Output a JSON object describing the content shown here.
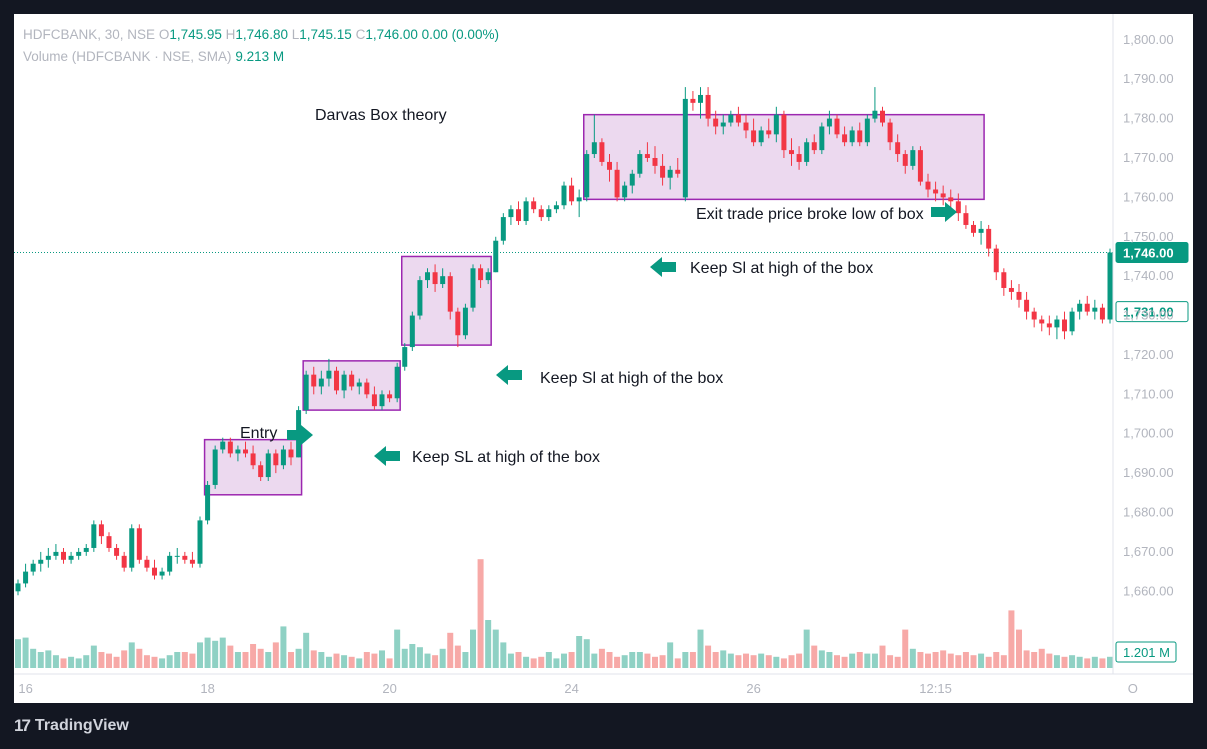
{
  "legend": {
    "symbol": "HDFCBANK, 30, NSE",
    "open_k": "O",
    "open": "1,745.95",
    "high_k": "H",
    "high": "1,746.80",
    "low_k": "L",
    "low": "1,745.15",
    "close_k": "C",
    "close": "1,746.00",
    "change": "0.00 (0.00%)",
    "volume_label": "Volume (HDFCBANK · NSE, SMA)",
    "volume_value": "9.213 M"
  },
  "footer": {
    "logo": "17",
    "brand": "TradingView"
  },
  "chart_data": {
    "type": "candlestick",
    "title": "",
    "y_ticks": [
      "1,800.00",
      "1,790.00",
      "1,780.00",
      "1,770.00",
      "1,760.00",
      "1,750.00",
      "1,740.00",
      "1,730.00",
      "1,720.00",
      "1,710.00",
      "1,700.00",
      "1,690.00",
      "1,680.00",
      "1,670.00",
      "1,660.00"
    ],
    "x_ticks": [
      "16",
      "18",
      "20",
      "24",
      "26",
      "12:15",
      "O"
    ],
    "ylim": [
      1655,
      1803
    ],
    "last_price_label": "1,746.00",
    "last_price": 1746.0,
    "price_marker_label": "1,731.00",
    "price_marker": 1731.0,
    "volume_marker_label": "1.201 M",
    "colors": {
      "up": "#089981",
      "down": "#f23645",
      "up_vol": "#8fd1c4",
      "down_vol": "#f7a9a7",
      "box_fill": "#e9d2ec",
      "box_stroke": "#9c27b0",
      "arrow": "#089981",
      "price_line": "#089981"
    },
    "candles": [
      {
        "o": 1660,
        "h": 1663,
        "l": 1659,
        "c": 1662
      },
      {
        "o": 1662,
        "h": 1667,
        "l": 1661,
        "c": 1665
      },
      {
        "o": 1665,
        "h": 1668,
        "l": 1664,
        "c": 1667
      },
      {
        "o": 1667,
        "h": 1670,
        "l": 1665,
        "c": 1668
      },
      {
        "o": 1668,
        "h": 1671,
        "l": 1666,
        "c": 1669
      },
      {
        "o": 1669,
        "h": 1672,
        "l": 1668,
        "c": 1670
      },
      {
        "o": 1670,
        "h": 1671,
        "l": 1667,
        "c": 1668
      },
      {
        "o": 1668,
        "h": 1670,
        "l": 1667,
        "c": 1669
      },
      {
        "o": 1669,
        "h": 1671,
        "l": 1668,
        "c": 1670
      },
      {
        "o": 1670,
        "h": 1672,
        "l": 1669,
        "c": 1671
      },
      {
        "o": 1671,
        "h": 1678,
        "l": 1670,
        "c": 1677
      },
      {
        "o": 1677,
        "h": 1678,
        "l": 1672,
        "c": 1674
      },
      {
        "o": 1674,
        "h": 1675,
        "l": 1670,
        "c": 1671
      },
      {
        "o": 1671,
        "h": 1672,
        "l": 1668,
        "c": 1669
      },
      {
        "o": 1669,
        "h": 1670,
        "l": 1665,
        "c": 1666
      },
      {
        "o": 1666,
        "h": 1677,
        "l": 1665,
        "c": 1676
      },
      {
        "o": 1676,
        "h": 1677,
        "l": 1667,
        "c": 1668
      },
      {
        "o": 1668,
        "h": 1669,
        "l": 1665,
        "c": 1666
      },
      {
        "o": 1666,
        "h": 1668,
        "l": 1663,
        "c": 1664
      },
      {
        "o": 1664,
        "h": 1666,
        "l": 1663,
        "c": 1665
      },
      {
        "o": 1665,
        "h": 1670,
        "l": 1664,
        "c": 1669
      },
      {
        "o": 1669,
        "h": 1671,
        "l": 1667,
        "c": 1669
      },
      {
        "o": 1669,
        "h": 1670,
        "l": 1667,
        "c": 1668
      },
      {
        "o": 1668,
        "h": 1670,
        "l": 1666,
        "c": 1667
      },
      {
        "o": 1667,
        "h": 1679,
        "l": 1666,
        "c": 1678
      },
      {
        "o": 1678,
        "h": 1688,
        "l": 1677,
        "c": 1687
      },
      {
        "o": 1687,
        "h": 1697,
        "l": 1686,
        "c": 1696
      },
      {
        "o": 1696,
        "h": 1699,
        "l": 1695,
        "c": 1698
      },
      {
        "o": 1698,
        "h": 1699,
        "l": 1694,
        "c": 1695
      },
      {
        "o": 1695,
        "h": 1697,
        "l": 1693,
        "c": 1696
      },
      {
        "o": 1696,
        "h": 1698,
        "l": 1694,
        "c": 1695
      },
      {
        "o": 1695,
        "h": 1697,
        "l": 1691,
        "c": 1692
      },
      {
        "o": 1692,
        "h": 1693,
        "l": 1688,
        "c": 1689
      },
      {
        "o": 1689,
        "h": 1696,
        "l": 1688,
        "c": 1695
      },
      {
        "o": 1695,
        "h": 1696,
        "l": 1690,
        "c": 1692
      },
      {
        "o": 1692,
        "h": 1697,
        "l": 1691,
        "c": 1696
      },
      {
        "o": 1696,
        "h": 1698,
        "l": 1692,
        "c": 1694
      },
      {
        "o": 1694,
        "h": 1707,
        "l": 1694,
        "c": 1706
      },
      {
        "o": 1706,
        "h": 1716,
        "l": 1705,
        "c": 1715
      },
      {
        "o": 1715,
        "h": 1717,
        "l": 1710,
        "c": 1712
      },
      {
        "o": 1712,
        "h": 1716,
        "l": 1710,
        "c": 1714
      },
      {
        "o": 1714,
        "h": 1719,
        "l": 1712,
        "c": 1716
      },
      {
        "o": 1716,
        "h": 1717,
        "l": 1710,
        "c": 1711
      },
      {
        "o": 1711,
        "h": 1716,
        "l": 1709,
        "c": 1715
      },
      {
        "o": 1715,
        "h": 1716,
        "l": 1711,
        "c": 1712
      },
      {
        "o": 1712,
        "h": 1714,
        "l": 1710,
        "c": 1713
      },
      {
        "o": 1713,
        "h": 1714,
        "l": 1709,
        "c": 1710
      },
      {
        "o": 1710,
        "h": 1712,
        "l": 1706,
        "c": 1707
      },
      {
        "o": 1707,
        "h": 1711,
        "l": 1706,
        "c": 1710
      },
      {
        "o": 1710,
        "h": 1711,
        "l": 1708,
        "c": 1709
      },
      {
        "o": 1709,
        "h": 1718,
        "l": 1708,
        "c": 1717
      },
      {
        "o": 1717,
        "h": 1723,
        "l": 1716,
        "c": 1722
      },
      {
        "o": 1722,
        "h": 1731,
        "l": 1721,
        "c": 1730
      },
      {
        "o": 1730,
        "h": 1740,
        "l": 1729,
        "c": 1739
      },
      {
        "o": 1739,
        "h": 1742,
        "l": 1737,
        "c": 1741
      },
      {
        "o": 1741,
        "h": 1743,
        "l": 1736,
        "c": 1738
      },
      {
        "o": 1738,
        "h": 1742,
        "l": 1737,
        "c": 1740
      },
      {
        "o": 1740,
        "h": 1741,
        "l": 1729,
        "c": 1731
      },
      {
        "o": 1731,
        "h": 1732,
        "l": 1722,
        "c": 1725
      },
      {
        "o": 1725,
        "h": 1733,
        "l": 1724,
        "c": 1732
      },
      {
        "o": 1732,
        "h": 1743,
        "l": 1731,
        "c": 1742
      },
      {
        "o": 1742,
        "h": 1743,
        "l": 1737,
        "c": 1739
      },
      {
        "o": 1739,
        "h": 1742,
        "l": 1738,
        "c": 1741
      },
      {
        "o": 1741,
        "h": 1750,
        "l": 1741,
        "c": 1749
      },
      {
        "o": 1749,
        "h": 1756,
        "l": 1748,
        "c": 1755
      },
      {
        "o": 1755,
        "h": 1758,
        "l": 1753,
        "c": 1757
      },
      {
        "o": 1757,
        "h": 1759,
        "l": 1753,
        "c": 1754
      },
      {
        "o": 1754,
        "h": 1760,
        "l": 1753,
        "c": 1759
      },
      {
        "o": 1759,
        "h": 1760,
        "l": 1756,
        "c": 1757
      },
      {
        "o": 1757,
        "h": 1758,
        "l": 1754,
        "c": 1755
      },
      {
        "o": 1755,
        "h": 1758,
        "l": 1754,
        "c": 1757
      },
      {
        "o": 1757,
        "h": 1759,
        "l": 1756,
        "c": 1758
      },
      {
        "o": 1758,
        "h": 1764,
        "l": 1757,
        "c": 1763
      },
      {
        "o": 1763,
        "h": 1765,
        "l": 1758,
        "c": 1759
      },
      {
        "o": 1759,
        "h": 1762,
        "l": 1755,
        "c": 1760
      },
      {
        "o": 1760,
        "h": 1772,
        "l": 1759,
        "c": 1771
      },
      {
        "o": 1771,
        "h": 1781,
        "l": 1770,
        "c": 1774
      },
      {
        "o": 1774,
        "h": 1775,
        "l": 1768,
        "c": 1769
      },
      {
        "o": 1769,
        "h": 1771,
        "l": 1764,
        "c": 1767
      },
      {
        "o": 1767,
        "h": 1769,
        "l": 1759,
        "c": 1760
      },
      {
        "o": 1760,
        "h": 1764,
        "l": 1759,
        "c": 1763
      },
      {
        "o": 1763,
        "h": 1767,
        "l": 1761,
        "c": 1766
      },
      {
        "o": 1766,
        "h": 1772,
        "l": 1765,
        "c": 1771
      },
      {
        "o": 1771,
        "h": 1774,
        "l": 1769,
        "c": 1770
      },
      {
        "o": 1770,
        "h": 1773,
        "l": 1766,
        "c": 1768
      },
      {
        "o": 1768,
        "h": 1771,
        "l": 1763,
        "c": 1765
      },
      {
        "o": 1765,
        "h": 1768,
        "l": 1762,
        "c": 1767
      },
      {
        "o": 1767,
        "h": 1770,
        "l": 1765,
        "c": 1766
      },
      {
        "o": 1760,
        "h": 1788,
        "l": 1759,
        "c": 1785
      },
      {
        "o": 1785,
        "h": 1787,
        "l": 1782,
        "c": 1784
      },
      {
        "o": 1784,
        "h": 1788,
        "l": 1780,
        "c": 1786
      },
      {
        "o": 1786,
        "h": 1788,
        "l": 1778,
        "c": 1780
      },
      {
        "o": 1780,
        "h": 1782,
        "l": 1776,
        "c": 1778
      },
      {
        "o": 1778,
        "h": 1781,
        "l": 1776,
        "c": 1779
      },
      {
        "o": 1779,
        "h": 1782,
        "l": 1778,
        "c": 1781
      },
      {
        "o": 1781,
        "h": 1783,
        "l": 1778,
        "c": 1779
      },
      {
        "o": 1779,
        "h": 1781,
        "l": 1775,
        "c": 1777
      },
      {
        "o": 1777,
        "h": 1780,
        "l": 1773,
        "c": 1774
      },
      {
        "o": 1774,
        "h": 1778,
        "l": 1773,
        "c": 1777
      },
      {
        "o": 1777,
        "h": 1780,
        "l": 1775,
        "c": 1776
      },
      {
        "o": 1776,
        "h": 1783,
        "l": 1774,
        "c": 1781
      },
      {
        "o": 1781,
        "h": 1782,
        "l": 1770,
        "c": 1772
      },
      {
        "o": 1772,
        "h": 1775,
        "l": 1768,
        "c": 1771
      },
      {
        "o": 1771,
        "h": 1773,
        "l": 1767,
        "c": 1769
      },
      {
        "o": 1769,
        "h": 1775,
        "l": 1768,
        "c": 1774
      },
      {
        "o": 1774,
        "h": 1776,
        "l": 1771,
        "c": 1772
      },
      {
        "o": 1772,
        "h": 1779,
        "l": 1771,
        "c": 1778
      },
      {
        "o": 1778,
        "h": 1782,
        "l": 1776,
        "c": 1780
      },
      {
        "o": 1780,
        "h": 1781,
        "l": 1775,
        "c": 1776
      },
      {
        "o": 1776,
        "h": 1778,
        "l": 1773,
        "c": 1774
      },
      {
        "o": 1774,
        "h": 1778,
        "l": 1773,
        "c": 1777
      },
      {
        "o": 1777,
        "h": 1779,
        "l": 1773,
        "c": 1774
      },
      {
        "o": 1774,
        "h": 1781,
        "l": 1773,
        "c": 1780
      },
      {
        "o": 1780,
        "h": 1788,
        "l": 1779,
        "c": 1782
      },
      {
        "o": 1782,
        "h": 1783,
        "l": 1778,
        "c": 1779
      },
      {
        "o": 1779,
        "h": 1780,
        "l": 1772,
        "c": 1774
      },
      {
        "o": 1774,
        "h": 1776,
        "l": 1769,
        "c": 1771
      },
      {
        "o": 1771,
        "h": 1772,
        "l": 1766,
        "c": 1768
      },
      {
        "o": 1768,
        "h": 1773,
        "l": 1767,
        "c": 1772
      },
      {
        "o": 1772,
        "h": 1773,
        "l": 1763,
        "c": 1764
      },
      {
        "o": 1764,
        "h": 1766,
        "l": 1760,
        "c": 1762
      },
      {
        "o": 1762,
        "h": 1764,
        "l": 1759,
        "c": 1761
      },
      {
        "o": 1761,
        "h": 1763,
        "l": 1758,
        "c": 1760
      },
      {
        "o": 1760,
        "h": 1762,
        "l": 1757,
        "c": 1759
      },
      {
        "o": 1759,
        "h": 1761,
        "l": 1754,
        "c": 1756
      },
      {
        "o": 1756,
        "h": 1758,
        "l": 1752,
        "c": 1753
      },
      {
        "o": 1753,
        "h": 1754,
        "l": 1750,
        "c": 1751
      },
      {
        "o": 1751,
        "h": 1754,
        "l": 1748,
        "c": 1752
      },
      {
        "o": 1752,
        "h": 1753,
        "l": 1745,
        "c": 1747
      },
      {
        "o": 1747,
        "h": 1748,
        "l": 1739,
        "c": 1741
      },
      {
        "o": 1741,
        "h": 1742,
        "l": 1735,
        "c": 1737
      },
      {
        "o": 1737,
        "h": 1739,
        "l": 1734,
        "c": 1736
      },
      {
        "o": 1736,
        "h": 1738,
        "l": 1732,
        "c": 1734
      },
      {
        "o": 1734,
        "h": 1736,
        "l": 1729,
        "c": 1731
      },
      {
        "o": 1731,
        "h": 1732,
        "l": 1727,
        "c": 1729
      },
      {
        "o": 1729,
        "h": 1730,
        "l": 1726,
        "c": 1728
      },
      {
        "o": 1728,
        "h": 1730,
        "l": 1725,
        "c": 1727
      },
      {
        "o": 1727,
        "h": 1730,
        "l": 1724,
        "c": 1729
      },
      {
        "o": 1729,
        "h": 1731,
        "l": 1724,
        "c": 1726
      },
      {
        "o": 1726,
        "h": 1732,
        "l": 1725,
        "c": 1731
      },
      {
        "o": 1731,
        "h": 1734,
        "l": 1729,
        "c": 1733
      },
      {
        "o": 1733,
        "h": 1735,
        "l": 1730,
        "c": 1731
      },
      {
        "o": 1731,
        "h": 1734,
        "l": 1729,
        "c": 1732
      },
      {
        "o": 1732,
        "h": 1733,
        "l": 1728,
        "c": 1729
      },
      {
        "o": 1729,
        "h": 1747,
        "l": 1728,
        "c": 1746
      }
    ],
    "volumes": [
      0.9,
      0.95,
      0.6,
      0.5,
      0.55,
      0.4,
      0.3,
      0.35,
      0.3,
      0.4,
      0.7,
      0.5,
      0.45,
      0.35,
      0.55,
      0.8,
      0.6,
      0.4,
      0.35,
      0.3,
      0.4,
      0.5,
      0.5,
      0.45,
      0.8,
      0.95,
      0.85,
      0.95,
      0.7,
      0.5,
      0.5,
      0.75,
      0.6,
      0.5,
      0.8,
      1.3,
      0.5,
      0.6,
      1.1,
      0.55,
      0.5,
      0.35,
      0.45,
      0.4,
      0.35,
      0.3,
      0.5,
      0.45,
      0.55,
      0.3,
      1.2,
      0.6,
      0.75,
      0.65,
      0.45,
      0.4,
      0.6,
      1.1,
      0.7,
      0.5,
      1.2,
      3.4,
      1.5,
      1.2,
      0.8,
      0.45,
      0.5,
      0.35,
      0.3,
      0.35,
      0.5,
      0.3,
      0.45,
      0.5,
      1.0,
      0.9,
      0.45,
      0.6,
      0.5,
      0.35,
      0.4,
      0.5,
      0.5,
      0.45,
      0.35,
      0.4,
      0.8,
      0.3,
      0.5,
      0.5,
      1.2,
      0.7,
      0.5,
      0.55,
      0.45,
      0.4,
      0.45,
      0.4,
      0.45,
      0.4,
      0.35,
      0.3,
      0.4,
      0.45,
      1.2,
      0.7,
      0.55,
      0.5,
      0.4,
      0.35,
      0.45,
      0.5,
      0.45,
      0.45,
      0.7,
      0.4,
      0.35,
      1.2,
      0.6,
      0.5,
      0.45,
      0.5,
      0.55,
      0.45,
      0.4,
      0.5,
      0.4,
      0.45,
      0.35,
      0.5,
      0.4,
      1.8,
      1.2,
      0.55,
      0.5,
      0.6,
      0.45,
      0.4,
      0.35,
      0.4,
      0.35,
      0.3,
      0.35,
      0.3,
      0.35,
      0.35,
      0.3,
      0.35,
      0.3,
      0.3,
      1.0,
      0.7,
      0.55,
      0.5,
      0.4
    ],
    "boxes": [
      {
        "label": "box-1",
        "y_high": 1698.5,
        "y_low": 1684.5
      },
      {
        "label": "box-2",
        "y_high": 1718.5,
        "y_low": 1706.0
      },
      {
        "label": "box-3",
        "y_high": 1745.0,
        "y_low": 1722.5
      },
      {
        "label": "box-4",
        "y_high": 1781.0,
        "y_low": 1759.5
      }
    ],
    "annotations": {
      "title": "Darvas Box theory",
      "entry": "Entry",
      "sl1": "Keep SL at high of the box",
      "sl2": "Keep Sl at high of the box",
      "sl3": "Keep Sl at high of the box",
      "exit": "Exit trade price broke low of box"
    }
  }
}
